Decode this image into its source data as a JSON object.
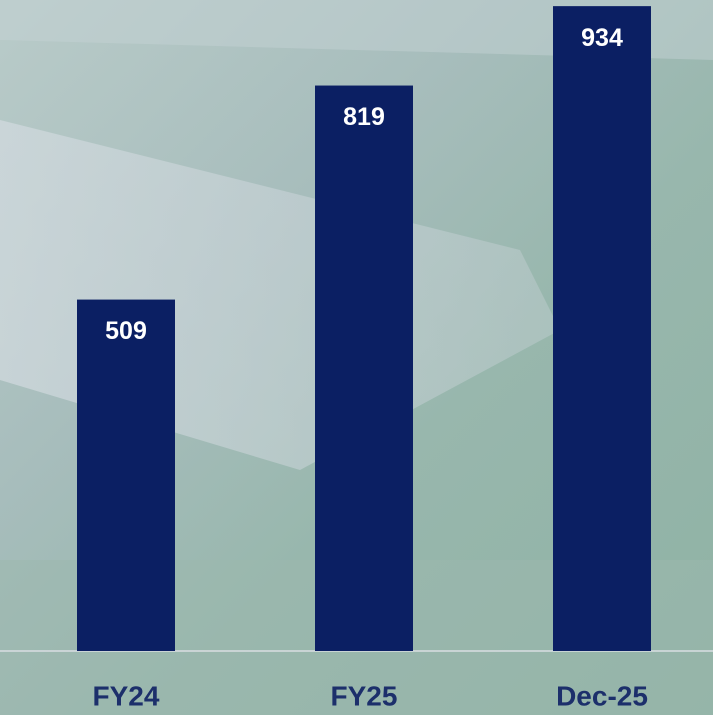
{
  "chart_data": {
    "type": "bar",
    "categories": [
      "FY24",
      "FY25",
      "Dec-25"
    ],
    "values": [
      509,
      819,
      934
    ],
    "color": "#0b1f63",
    "ylim": [
      0,
      940
    ]
  }
}
